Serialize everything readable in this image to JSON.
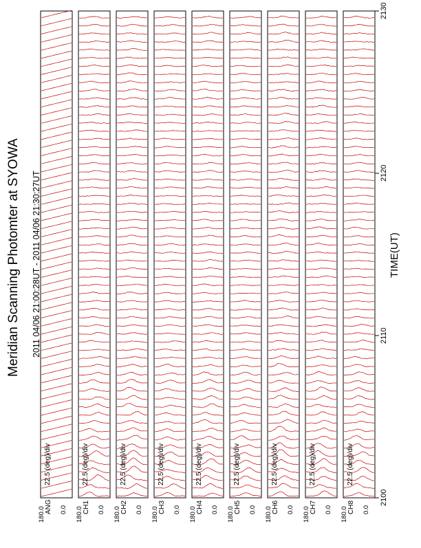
{
  "title": "Meridian Scanning Photomter at SYOWA",
  "subtitle": "2011 04/06 21:00:28UT - 2011 04/06 21:30:27UT",
  "colors": {
    "trace": "#cc0000",
    "frame": "#000000",
    "background": "#ffffff"
  },
  "chart_data": {
    "type": "line",
    "title": "Meridian Scanning Photomter at SYOWA",
    "subtitle": "2011 04/06 21:00:28UT - 2011 04/06 21:30:27UT",
    "time_axis": {
      "label": "TIME(UT)",
      "ticks": [
        "2100",
        "2110",
        "2120",
        "2130"
      ],
      "range": [
        "2100",
        "2130"
      ]
    },
    "panels": [
      {
        "channel": "ANG",
        "scale": "22.5 (deg)/div",
        "y_ticks": [
          "180.0",
          "0.0"
        ],
        "activity": 0.0
      },
      {
        "channel": "CH1",
        "scale": "22.5 (deg)/div",
        "y_ticks": [
          "180.0",
          "0.0"
        ],
        "activity": 0.7
      },
      {
        "channel": "CH2",
        "scale": "22.5 (deg)/div",
        "y_ticks": [
          "180.0",
          "0.0"
        ],
        "activity": 0.8
      },
      {
        "channel": "CH3",
        "scale": "22.5 (deg)/div",
        "y_ticks": [
          "180.0",
          "0.0"
        ],
        "activity": 0.6
      },
      {
        "channel": "CH4",
        "scale": "22.5 (deg)/div",
        "y_ticks": [
          "180.0",
          "0.0"
        ],
        "activity": 0.7
      },
      {
        "channel": "CH5",
        "scale": "22.5 (deg)/div",
        "y_ticks": [
          "180.0",
          "0.0"
        ],
        "activity": 0.6
      },
      {
        "channel": "CH6",
        "scale": "22.5 (deg)/div",
        "y_ticks": [
          "180.0",
          "0.0"
        ],
        "activity": 0.9
      },
      {
        "channel": "CH7",
        "scale": "22.5 (deg)/div",
        "y_ticks": [
          "180.0",
          "0.0"
        ],
        "activity": 0.8
      },
      {
        "channel": "CH8",
        "scale": "22.5 (deg)/div",
        "y_ticks": [
          "180.0",
          "0.0"
        ],
        "activity": 0.7
      }
    ],
    "scans": 60,
    "grid": false
  }
}
